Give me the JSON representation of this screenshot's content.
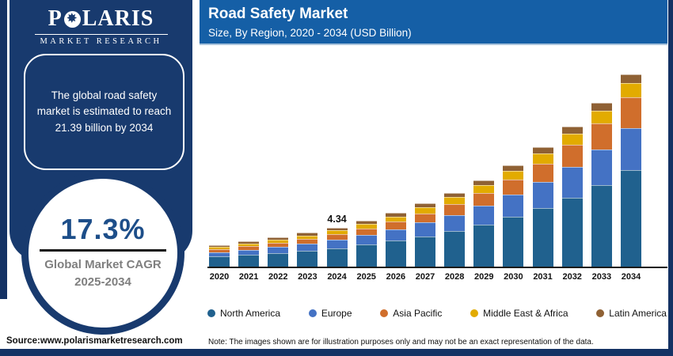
{
  "logo": {
    "prefix": "P",
    "star": "✸",
    "suffix": "LARIS",
    "subtitle": "MARKET RESEARCH"
  },
  "header": {
    "title": "Road Safety Market",
    "subtitle": "Size, By Region, 2020 - 2034 (USD Billion)"
  },
  "sidebar": {
    "callout": "The global road safety market is estimated to reach 21.39 billion by 2034",
    "cagr_value": "17.3%",
    "cagr_label_line1": "Global Market CAGR",
    "cagr_label_line2": "2025-2034"
  },
  "chart_data": {
    "type": "bar",
    "stacked": true,
    "title": "Road Safety Market",
    "subtitle": "Size, By Region, 2020 - 2034 (USD Billion)",
    "unit": "USD Billion",
    "categories": [
      "2020",
      "2021",
      "2022",
      "2023",
      "2024",
      "2025",
      "2026",
      "2027",
      "2028",
      "2029",
      "2030",
      "2031",
      "2032",
      "2033",
      "2034"
    ],
    "series": [
      {
        "name": "North America",
        "color": "#20618E",
        "values": [
          1.12,
          1.3,
          1.52,
          1.77,
          2.06,
          2.43,
          2.87,
          3.38,
          3.98,
          4.69,
          5.54,
          6.53,
          7.69,
          9.07,
          10.7
        ]
      },
      {
        "name": "Europe",
        "color": "#4472C4",
        "values": [
          0.5,
          0.59,
          0.69,
          0.8,
          0.92,
          1.09,
          1.28,
          1.51,
          1.77,
          2.08,
          2.45,
          2.89,
          3.4,
          4.0,
          4.71
        ]
      },
      {
        "name": "Asia Pacific",
        "color": "#D06E2C",
        "values": [
          0.32,
          0.38,
          0.45,
          0.53,
          0.62,
          0.73,
          0.87,
          1.03,
          1.23,
          1.46,
          1.73,
          2.05,
          2.43,
          2.88,
          3.42
        ]
      },
      {
        "name": "Middle East & Africa",
        "color": "#E2AB00",
        "values": [
          0.26,
          0.3,
          0.34,
          0.38,
          0.43,
          0.5,
          0.57,
          0.65,
          0.74,
          0.84,
          0.96,
          1.09,
          1.24,
          1.41,
          1.6
        ]
      },
      {
        "name": "Latin America",
        "color": "#8F6134",
        "values": [
          0.19,
          0.22,
          0.24,
          0.27,
          0.31,
          0.34,
          0.39,
          0.44,
          0.49,
          0.55,
          0.62,
          0.7,
          0.78,
          0.87,
          0.96
        ]
      }
    ],
    "totals": [
      2.4,
      2.79,
      3.24,
      3.75,
      4.34,
      5.09,
      5.97,
      7.0,
      8.21,
      9.63,
      11.3,
      13.25,
      15.54,
      18.23,
      21.39
    ],
    "data_labels": [
      {
        "category": "2024",
        "value": "4.34"
      }
    ],
    "ylim": [
      0,
      21.39
    ],
    "grid": false,
    "legend_position": "bottom"
  },
  "footer": {
    "source": "Source:www.polarismarketresearch.com",
    "note": "Note: The images shown are for illustration purposes only and may not be an exact representation of the data."
  },
  "colors": {
    "frame_navy": "#143264",
    "panel_navy": "#183A6E",
    "header_blue": "#155FA6",
    "cagr_blue": "#1D4E89",
    "gray_label": "#7F7F7F"
  }
}
